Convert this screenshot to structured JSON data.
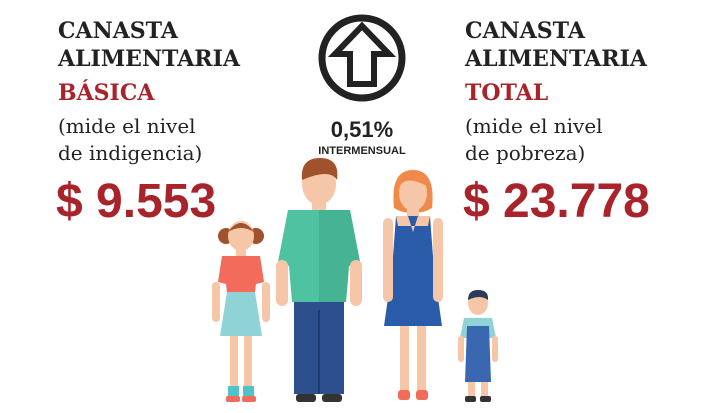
{
  "left": {
    "lines": [
      "CANASTA",
      "ALIMENTARIA"
    ],
    "highlight": "BÁSICA",
    "note": [
      "(mide el nivel",
      "de indigencia)"
    ],
    "price": "$ 9.553"
  },
  "center": {
    "change": "0,51%",
    "label": "INTERMENSUAL"
  },
  "right": {
    "lines": [
      "CANASTA",
      "ALIMENTARIA"
    ],
    "highlight": "TOTAL",
    "note": [
      "(mide el nivel",
      "de pobreza)"
    ],
    "price": "$ 23.778"
  }
}
